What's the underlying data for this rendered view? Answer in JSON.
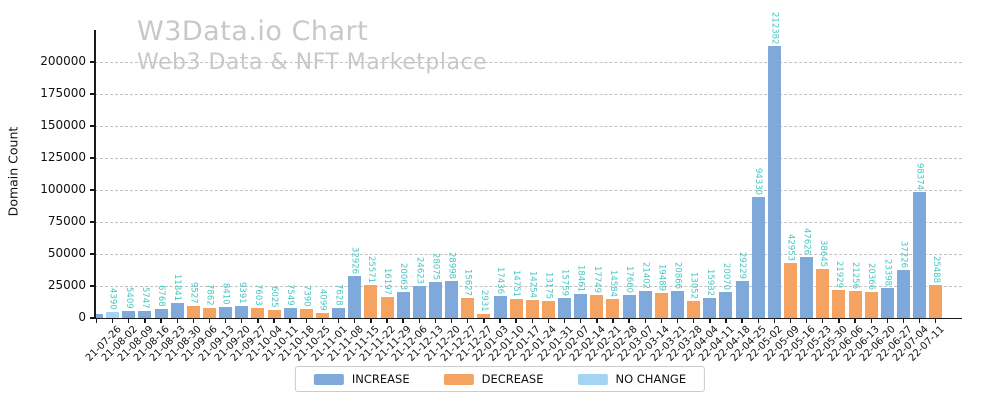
{
  "watermark": {
    "title": "W3Data.io Chart",
    "subtitle": "Web3 Data & NFT Marketplace"
  },
  "colors": {
    "increase": "#7fa9da",
    "decrease": "#f4a460",
    "no_change": "#a5d3f3",
    "value_label": "#45c7c2",
    "watermark": "#c8c8c8",
    "grid": "#c2c2c2"
  },
  "legend": [
    {
      "key": "increase",
      "label": "INCREASE"
    },
    {
      "key": "decrease",
      "label": "DECREASE"
    },
    {
      "key": "no_change",
      "label": "NO CHANGE"
    }
  ],
  "chart_data": {
    "type": "bar",
    "title": "W3Data.io Chart",
    "subtitle": "Web3 Data & NFT Marketplace",
    "xlabel": "",
    "ylabel": "Domain Count",
    "ylim": [
      0,
      225000
    ],
    "yticks": [
      0,
      25000,
      50000,
      75000,
      100000,
      125000,
      150000,
      175000,
      200000
    ],
    "grid": "dashed-horizontal",
    "legend_position": "bottom-center",
    "value_labels_rotated": true,
    "bars": [
      {
        "date": "",
        "value": 3500,
        "change": "INCREASE",
        "show_label": false
      },
      {
        "date": "21-07-26",
        "value": 4390,
        "change": "NO CHANGE",
        "show_label": true
      },
      {
        "date": "21-08-02",
        "value": 5409,
        "change": "INCREASE",
        "show_label": true
      },
      {
        "date": "21-08-09",
        "value": 5747,
        "change": "INCREASE",
        "show_label": true
      },
      {
        "date": "21-08-16",
        "value": 6768,
        "change": "INCREASE",
        "show_label": true
      },
      {
        "date": "21-08-23",
        "value": 11841,
        "change": "INCREASE",
        "show_label": true
      },
      {
        "date": "21-08-30",
        "value": 9527,
        "change": "DECREASE",
        "show_label": true
      },
      {
        "date": "21-09-06",
        "value": 7862,
        "change": "DECREASE",
        "show_label": true
      },
      {
        "date": "21-09-13",
        "value": 8410,
        "change": "INCREASE",
        "show_label": true
      },
      {
        "date": "21-09-20",
        "value": 9391,
        "change": "INCREASE",
        "show_label": true
      },
      {
        "date": "21-09-27",
        "value": 7603,
        "change": "DECREASE",
        "show_label": true
      },
      {
        "date": "21-10-04",
        "value": 6025,
        "change": "DECREASE",
        "show_label": true
      },
      {
        "date": "21-10-11",
        "value": 7549,
        "change": "INCREASE",
        "show_label": true
      },
      {
        "date": "21-10-18",
        "value": 7390,
        "change": "DECREASE",
        "show_label": true
      },
      {
        "date": "21-10-25",
        "value": 4099,
        "change": "DECREASE",
        "show_label": true
      },
      {
        "date": "21-11-01",
        "value": 7628,
        "change": "INCREASE",
        "show_label": true
      },
      {
        "date": "21-11-08",
        "value": 32926,
        "change": "INCREASE",
        "show_label": true
      },
      {
        "date": "21-11-15",
        "value": 25571,
        "change": "DECREASE",
        "show_label": true
      },
      {
        "date": "21-11-22",
        "value": 16197,
        "change": "DECREASE",
        "show_label": true
      },
      {
        "date": "21-11-29",
        "value": 20063,
        "change": "INCREASE",
        "show_label": true
      },
      {
        "date": "21-12-06",
        "value": 24623,
        "change": "INCREASE",
        "show_label": true
      },
      {
        "date": "21-12-13",
        "value": 28075,
        "change": "INCREASE",
        "show_label": true
      },
      {
        "date": "21-12-20",
        "value": 28998,
        "change": "INCREASE",
        "show_label": true
      },
      {
        "date": "21-12-27",
        "value": 15627,
        "change": "DECREASE",
        "show_label": true
      },
      {
        "date": "21-12-27",
        "value": 2931,
        "change": "DECREASE",
        "show_label": true
      },
      {
        "date": "22-01-03",
        "value": 17436,
        "change": "INCREASE",
        "show_label": true
      },
      {
        "date": "22-01-10",
        "value": 14751,
        "change": "DECREASE",
        "show_label": true
      },
      {
        "date": "22-01-17",
        "value": 14254,
        "change": "DECREASE",
        "show_label": true
      },
      {
        "date": "22-01-24",
        "value": 13175,
        "change": "DECREASE",
        "show_label": true
      },
      {
        "date": "22-01-31",
        "value": 15759,
        "change": "INCREASE",
        "show_label": true
      },
      {
        "date": "22-02-07",
        "value": 18461,
        "change": "INCREASE",
        "show_label": true
      },
      {
        "date": "22-02-14",
        "value": 17749,
        "change": "DECREASE",
        "show_label": true
      },
      {
        "date": "22-02-21",
        "value": 14584,
        "change": "DECREASE",
        "show_label": true
      },
      {
        "date": "22-02-28",
        "value": 17660,
        "change": "INCREASE",
        "show_label": true
      },
      {
        "date": "22-03-07",
        "value": 21402,
        "change": "INCREASE",
        "show_label": true
      },
      {
        "date": "22-03-14",
        "value": 19489,
        "change": "DECREASE",
        "show_label": true
      },
      {
        "date": "22-03-21",
        "value": 20866,
        "change": "INCREASE",
        "show_label": true
      },
      {
        "date": "22-03-28",
        "value": 13052,
        "change": "DECREASE",
        "show_label": true
      },
      {
        "date": "22-04-04",
        "value": 15932,
        "change": "INCREASE",
        "show_label": true
      },
      {
        "date": "22-04-11",
        "value": 20070,
        "change": "INCREASE",
        "show_label": true
      },
      {
        "date": "22-04-18",
        "value": 29229,
        "change": "INCREASE",
        "show_label": true
      },
      {
        "date": "22-04-25",
        "value": 94330,
        "change": "INCREASE",
        "show_label": true
      },
      {
        "date": "22-05-02",
        "value": 212382,
        "change": "INCREASE",
        "show_label": true
      },
      {
        "date": "22-05-09",
        "value": 42953,
        "change": "DECREASE",
        "show_label": true
      },
      {
        "date": "22-05-16",
        "value": 47626,
        "change": "INCREASE",
        "show_label": true
      },
      {
        "date": "22-05-23",
        "value": 38645,
        "change": "DECREASE",
        "show_label": true
      },
      {
        "date": "22-05-30",
        "value": 21929,
        "change": "DECREASE",
        "show_label": true
      },
      {
        "date": "22-06-06",
        "value": 21256,
        "change": "DECREASE",
        "show_label": true
      },
      {
        "date": "22-06-13",
        "value": 20366,
        "change": "DECREASE",
        "show_label": true
      },
      {
        "date": "22-06-20",
        "value": 23398,
        "change": "INCREASE",
        "show_label": true
      },
      {
        "date": "22-06-27",
        "value": 37226,
        "change": "INCREASE",
        "show_label": true
      },
      {
        "date": "22-07-04",
        "value": 98374,
        "change": "INCREASE",
        "show_label": true
      },
      {
        "date": "22-07-11",
        "value": 25488,
        "change": "DECREASE",
        "show_label": true
      }
    ]
  }
}
